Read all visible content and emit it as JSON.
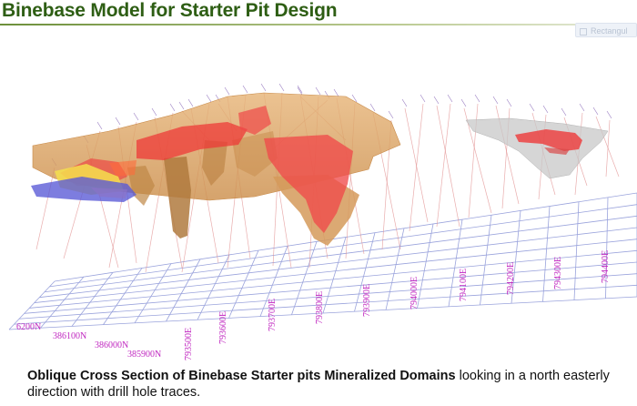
{
  "slide": {
    "title": "Binebase Model for Starter Pit Design",
    "caption_bold": "Oblique Cross Section of Binebase Starter pits Mineralized Domains",
    "caption_rest": " looking in a north easterly direction with drill hole traces."
  },
  "overlay": {
    "button_label": "Rectangul"
  },
  "grid": {
    "northing_labels": [
      "6200N",
      "386100N",
      "386000N",
      "385900N"
    ],
    "easting_labels": [
      "793500E",
      "793600E",
      "793700E",
      "793800E",
      "793900E",
      "794000E",
      "794100E",
      "794200E",
      "794300E",
      "794400E"
    ]
  },
  "colors": {
    "title": "#2e5e14",
    "grid_line": "#9aa3dc",
    "label": "#c027c0",
    "envelope": "#d9a262",
    "mineralized": "#ee3a3a",
    "blue_domain": "#5c5cd8",
    "yellow_domain": "#f2e24a",
    "drillhole": "#e08a8a",
    "grey_pit": "#c6c6c6"
  }
}
